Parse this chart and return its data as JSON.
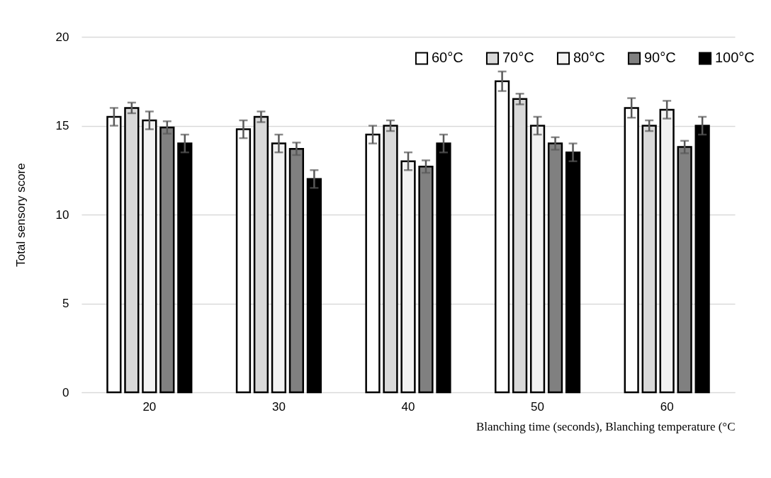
{
  "chart_data": {
    "type": "bar",
    "xlabel": "Blanching time (seconds), Blanching temperature (°C",
    "ylabel": "Total sensory score",
    "categories": [
      "20",
      "30",
      "40",
      "50",
      "60"
    ],
    "series": [
      {
        "name": "60°C",
        "color": "#ffffff",
        "values": [
          15.5,
          14.8,
          14.5,
          17.5,
          16.0
        ],
        "errors": [
          0.5,
          0.5,
          0.5,
          0.55,
          0.55
        ]
      },
      {
        "name": "70°C",
        "color": "#d9d9d9",
        "values": [
          16.0,
          15.5,
          15.0,
          16.5,
          15.0
        ],
        "errors": [
          0.3,
          0.3,
          0.3,
          0.3,
          0.3
        ]
      },
      {
        "name": "80°C",
        "color": "#f2f2f2",
        "values": [
          15.3,
          14.0,
          13.0,
          15.0,
          15.9
        ],
        "errors": [
          0.5,
          0.5,
          0.5,
          0.5,
          0.5
        ]
      },
      {
        "name": "90°C",
        "color": "#808080",
        "values": [
          14.9,
          13.7,
          12.7,
          14.0,
          13.8
        ],
        "errors": [
          0.35,
          0.35,
          0.35,
          0.35,
          0.35
        ]
      },
      {
        "name": "100°C",
        "color": "#000000",
        "values": [
          14.0,
          12.0,
          14.0,
          13.5,
          15.0
        ],
        "errors": [
          0.5,
          0.5,
          0.5,
          0.5,
          0.5
        ]
      }
    ],
    "ylim": [
      0,
      20
    ],
    "yticks": [
      0,
      5,
      10,
      15,
      20
    ],
    "grid": "y",
    "legend": "top right"
  }
}
